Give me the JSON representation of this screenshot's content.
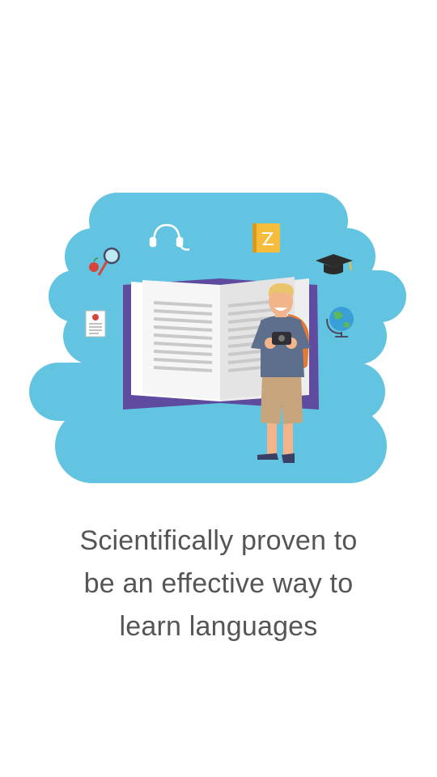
{
  "onboarding": {
    "tagline_lines": [
      "Scientifically proven to",
      "be an effective way to",
      "learn languages"
    ]
  },
  "illustration": {
    "icons": [
      "magnifier-icon",
      "apple-icon",
      "headphones-icon",
      "notebook-icon",
      "graduation-cap-icon",
      "certificate-icon",
      "globe-icon"
    ],
    "colors": {
      "cloud": "#62c4e0",
      "book_cover": "#5e4a9e",
      "page": "#f2f2f2",
      "text_lines": "#c9c9c9",
      "backpack": "#e07a36",
      "shirt": "#5d6f8c",
      "shorts": "#c7a57c",
      "skin": "#f2b48a",
      "hair": "#e9c46a",
      "notebook": "#f5bd3b",
      "cap": "#2b2b2b"
    }
  }
}
